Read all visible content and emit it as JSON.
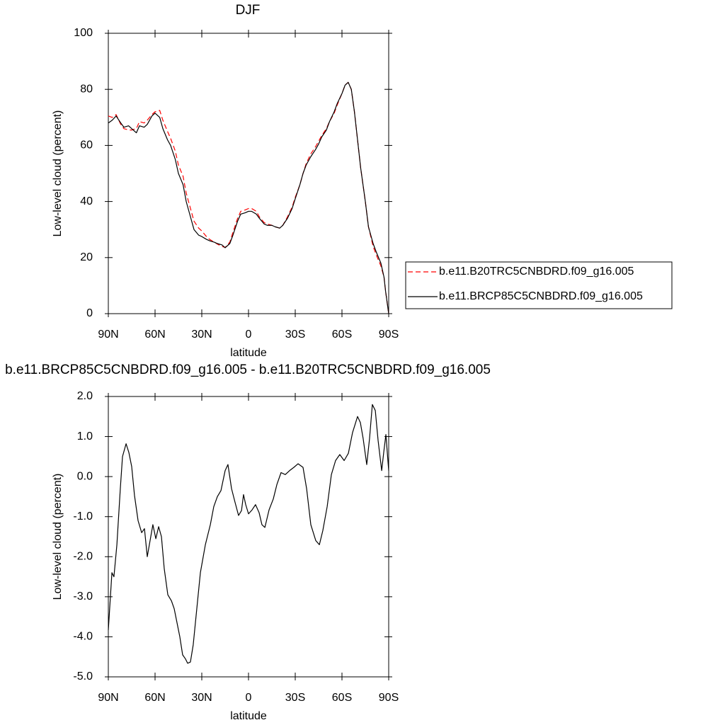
{
  "chart_data": [
    {
      "type": "line",
      "title": "DJF",
      "xlabel": "latitude",
      "ylabel": "Low-level cloud (percent)",
      "x": [
        90,
        87.5,
        85,
        82,
        80,
        77,
        75,
        72,
        70,
        67,
        65,
        62,
        60,
        57,
        55,
        52,
        50,
        47,
        45,
        42,
        40,
        37,
        35,
        32,
        30,
        27,
        25,
        22,
        20,
        17,
        15,
        12,
        10,
        7,
        5,
        2,
        0,
        -2,
        -5,
        -7,
        -10,
        -12,
        -15,
        -17,
        -20,
        -22,
        -25,
        -28,
        -30,
        -33,
        -35,
        -37,
        -40,
        -43,
        -45,
        -47,
        -50,
        -52,
        -55,
        -57,
        -60,
        -62,
        -64,
        -66,
        -68,
        -70,
        -72,
        -75,
        -77,
        -80,
        -82,
        -85,
        -87,
        -88,
        -90
      ],
      "series": [
        {
          "name": "b.e11.B20TRC5CNBDRD.f09_g16.005",
          "color": "#ff0000",
          "style": "dashed",
          "values": [
            70.5,
            70,
            71,
            67.5,
            66,
            65.5,
            65.5,
            66,
            68.5,
            68,
            69,
            71,
            72,
            72.5,
            69,
            65,
            62.5,
            58,
            53,
            49,
            43,
            37,
            33,
            30.5,
            29.5,
            27.5,
            26.5,
            25.5,
            24.8,
            24,
            23.6,
            25.5,
            29,
            34,
            36.5,
            37,
            37.5,
            37.5,
            36.5,
            34.5,
            32.5,
            32,
            31.5,
            31,
            30.5,
            31.5,
            34.5,
            38,
            41.5,
            46,
            50,
            53.5,
            57,
            59.5,
            61.5,
            63.5,
            66,
            68.5,
            71.5,
            74.5,
            78.5,
            81.5,
            82.5,
            80,
            72,
            62,
            52,
            40,
            31,
            24,
            21,
            17,
            13,
            8,
            0
          ]
        },
        {
          "name": "b.e11.BRCP85C5CNBDRD.f09_g16.005",
          "color": "#000000",
          "style": "solid",
          "values": [
            68,
            69,
            70.5,
            68,
            66.5,
            67,
            66,
            64.5,
            67,
            66.5,
            67.5,
            70.5,
            71.5,
            70,
            66,
            62,
            60,
            55,
            50,
            46,
            40,
            34,
            30,
            28,
            27.5,
            26.5,
            26,
            25.5,
            25,
            24.5,
            23.5,
            25,
            28,
            33,
            35.5,
            36,
            36.5,
            36.5,
            35.5,
            34,
            32,
            31.5,
            31.5,
            31,
            30.5,
            31.5,
            34,
            37.5,
            41,
            46,
            50,
            53,
            56,
            58.5,
            60.5,
            63,
            65.5,
            68.5,
            72,
            75,
            78.5,
            81.5,
            82.5,
            80,
            72,
            62,
            52,
            40,
            31,
            25,
            22,
            18,
            13,
            8,
            0
          ]
        }
      ],
      "xlim": [
        90,
        -90
      ],
      "ylim": [
        0,
        100
      ],
      "xticks": [
        {
          "value": 90,
          "label": "90N"
        },
        {
          "value": 60,
          "label": "60N"
        },
        {
          "value": 30,
          "label": "30N"
        },
        0,
        {
          "value": -30,
          "label": "30S"
        },
        {
          "value": -60,
          "label": "60S"
        },
        {
          "value": -90,
          "label": "90S"
        }
      ],
      "yticks": [
        0,
        20,
        40,
        60,
        80,
        100
      ],
      "legend": "right"
    },
    {
      "type": "line",
      "title": "b.e11.BRCP85C5CNBDRD.f09_g16.005 - b.e11.B20TRC5CNBDRD.f09_g16.005",
      "xlabel": "latitude",
      "ylabel": "Low-level cloud (percent)",
      "x": [
        90,
        87.7,
        86.4,
        84.5,
        82.3,
        80.9,
        78.6,
        76.8,
        75.0,
        73.2,
        70.9,
        68.6,
        66.8,
        65.0,
        63.2,
        61.4,
        59.5,
        57.7,
        55.9,
        54.1,
        51.8,
        49.5,
        47.7,
        45.9,
        44.1,
        42.3,
        40.5,
        39.1,
        37.3,
        35.5,
        33.2,
        30.9,
        27.7,
        24.5,
        22.3,
        20.0,
        17.7,
        15.0,
        13.2,
        10.9,
        8.6,
        6.4,
        4.5,
        3.2,
        1.8,
        0,
        -2.3,
        -4.5,
        -6.8,
        -8.6,
        -10.5,
        -13.2,
        -15.9,
        -18.2,
        -20.9,
        -23.6,
        -26.4,
        -29.1,
        -31.8,
        -35.0,
        -37.3,
        -40.0,
        -43.2,
        -45.5,
        -47.7,
        -50.5,
        -53.2,
        -55.9,
        -58.6,
        -61.4,
        -64.1,
        -66.8,
        -70.0,
        -71.8,
        -73.6,
        -75.9,
        -77.7,
        -79.5,
        -81.4,
        -83.2,
        -85.5,
        -86.8,
        -88.2,
        -90
      ],
      "series": [
        {
          "color": "#000000",
          "style": "solid",
          "values": [
            -3.83,
            -2.4,
            -2.5,
            -1.7,
            -0.3,
            0.5,
            0.82,
            0.6,
            0.25,
            -0.47,
            -1.1,
            -1.4,
            -1.3,
            -2.0,
            -1.6,
            -1.2,
            -1.55,
            -1.25,
            -1.5,
            -2.3,
            -2.95,
            -3.1,
            -3.3,
            -3.65,
            -4.0,
            -4.45,
            -4.55,
            -4.66,
            -4.63,
            -4.2,
            -3.3,
            -2.4,
            -1.7,
            -1.2,
            -0.75,
            -0.5,
            -0.35,
            0.15,
            0.3,
            -0.3,
            -0.65,
            -0.97,
            -0.85,
            -0.45,
            -0.7,
            -0.93,
            -0.83,
            -0.7,
            -0.9,
            -1.2,
            -1.27,
            -0.83,
            -0.56,
            -0.2,
            0.1,
            0.05,
            0.15,
            0.23,
            0.32,
            0.23,
            -0.3,
            -1.2,
            -1.6,
            -1.7,
            -1.35,
            -0.75,
            0.05,
            0.4,
            0.55,
            0.4,
            0.58,
            1.1,
            1.5,
            1.35,
            0.95,
            0.3,
            0.95,
            1.8,
            1.65,
            0.9,
            0.15,
            0.6,
            1.05,
            0.15
          ]
        }
      ],
      "xlim": [
        90,
        -90
      ],
      "ylim": [
        -5,
        2
      ],
      "xticks": [
        {
          "value": 90,
          "label": "90N"
        },
        {
          "value": 60,
          "label": "60N"
        },
        {
          "value": 30,
          "label": "30N"
        },
        0,
        {
          "value": -30,
          "label": "30S"
        },
        {
          "value": -60,
          "label": "60S"
        },
        {
          "value": -90,
          "label": "90S"
        }
      ],
      "yticks": [
        {
          "value": -5,
          "label": "-5.0"
        },
        {
          "value": -4,
          "label": "-4.0"
        },
        {
          "value": -3,
          "label": "-3.0"
        },
        {
          "value": -2,
          "label": "-2.0"
        },
        {
          "value": -1,
          "label": "-1.0"
        },
        {
          "value": 0,
          "label": "0.0"
        },
        {
          "value": 1,
          "label": "1.0"
        },
        {
          "value": 2,
          "label": "2.0"
        }
      ]
    }
  ]
}
